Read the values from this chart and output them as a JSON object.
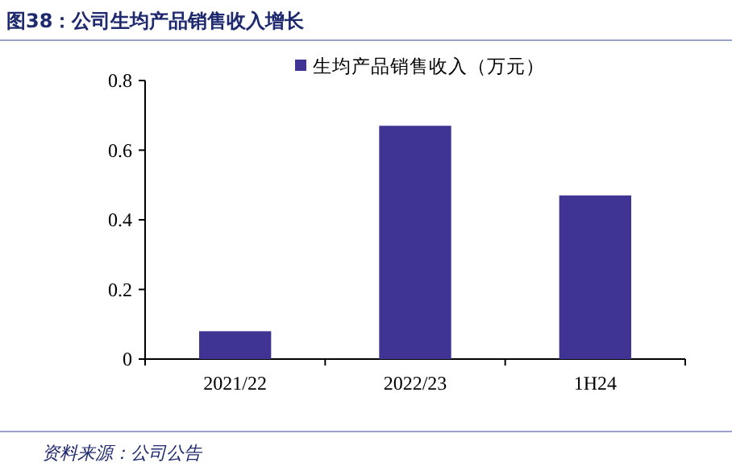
{
  "chart_data": {
    "type": "bar",
    "title": "图38：公司生均产品销售收入增长",
    "categories": [
      "2021/22",
      "2022/23",
      "1H24"
    ],
    "series": [
      {
        "name": "生均产品销售收入（万元）",
        "color": "#3f3493",
        "values": [
          0.08,
          0.67,
          0.47
        ]
      }
    ],
    "ylim": [
      0,
      0.8
    ],
    "yticks": [
      0,
      0.2,
      0.4,
      0.6,
      0.8
    ],
    "grid": false,
    "legend": "top",
    "annotations": [
      "资料来源：公司公告"
    ]
  }
}
